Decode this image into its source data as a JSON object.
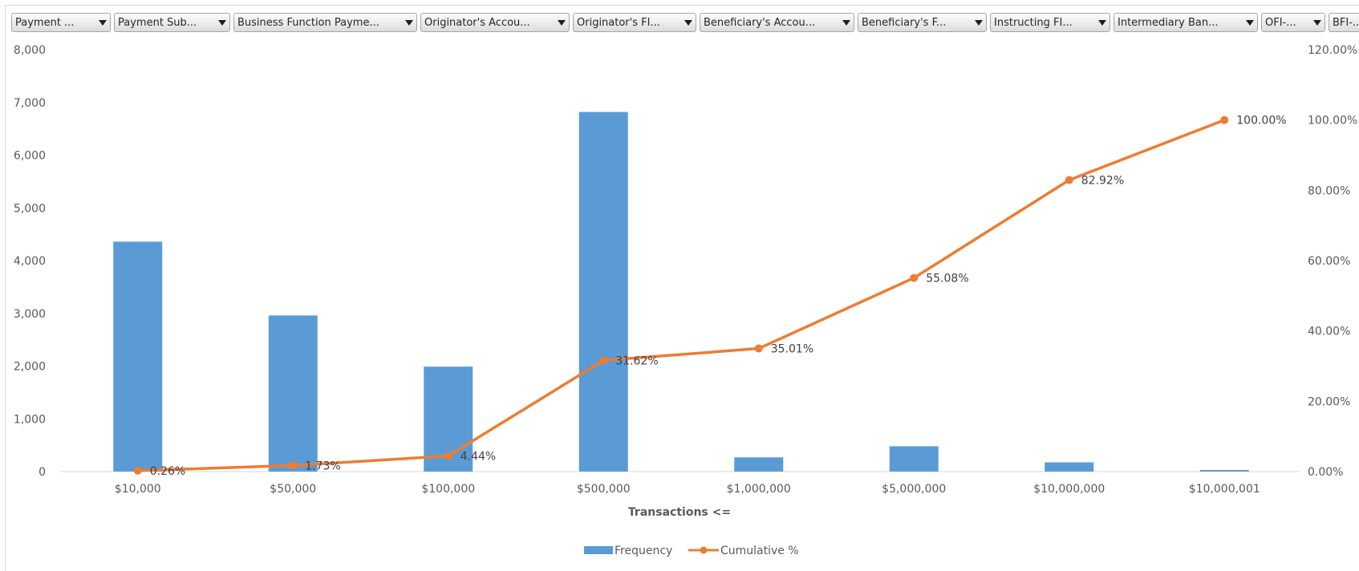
{
  "filters": [
    {
      "label": "Payment ..."
    },
    {
      "label": "Payment Sub..."
    },
    {
      "label": "Business Function Payme..."
    },
    {
      "label": "Originator's Accou..."
    },
    {
      "label": "Originator's FI..."
    },
    {
      "label": "Beneficiary's Accou..."
    },
    {
      "label": "Beneficiary's F..."
    },
    {
      "label": "Instructing FI..."
    },
    {
      "label": "Intermediary Ban..."
    },
    {
      "label": "OFI-..."
    },
    {
      "label": "BFI-..."
    }
  ],
  "chart_data": {
    "type": "bar",
    "categories": [
      "$10,000",
      "$50,000",
      "$100,000",
      "$500,000",
      "$1,000,000",
      "$5,000,000",
      "$10,000,000",
      "$10,000,001"
    ],
    "xlabel": "Transactions <=",
    "ylabel": "",
    "ylim": [
      0,
      8000
    ],
    "yticks": [
      "0",
      "1,000",
      "2,000",
      "3,000",
      "4,000",
      "5,000",
      "6,000",
      "7,000",
      "8,000"
    ],
    "y2lim": [
      0,
      120
    ],
    "y2ticks": [
      "0.00%",
      "20.00%",
      "40.00%",
      "60.00%",
      "80.00%",
      "100.00%",
      "120.00%"
    ],
    "grid": false,
    "legend_position": "bottom",
    "series": [
      {
        "name": "Frequency",
        "type": "bar",
        "axis": "left",
        "color": "#5b9bd5",
        "values": [
          4360,
          2960,
          1990,
          6820,
          270,
          480,
          175,
          30
        ]
      },
      {
        "name": "Cumulative %",
        "type": "line",
        "axis": "right",
        "color": "#ed7d31",
        "values": [
          0.26,
          1.73,
          4.44,
          31.62,
          35.01,
          55.08,
          82.92,
          100.0
        ],
        "labels": [
          "0.26%",
          "1.73%",
          "4.44%",
          "31.62%",
          "35.01%",
          "55.08%",
          "82.92%",
          "100.00%"
        ]
      }
    ]
  }
}
